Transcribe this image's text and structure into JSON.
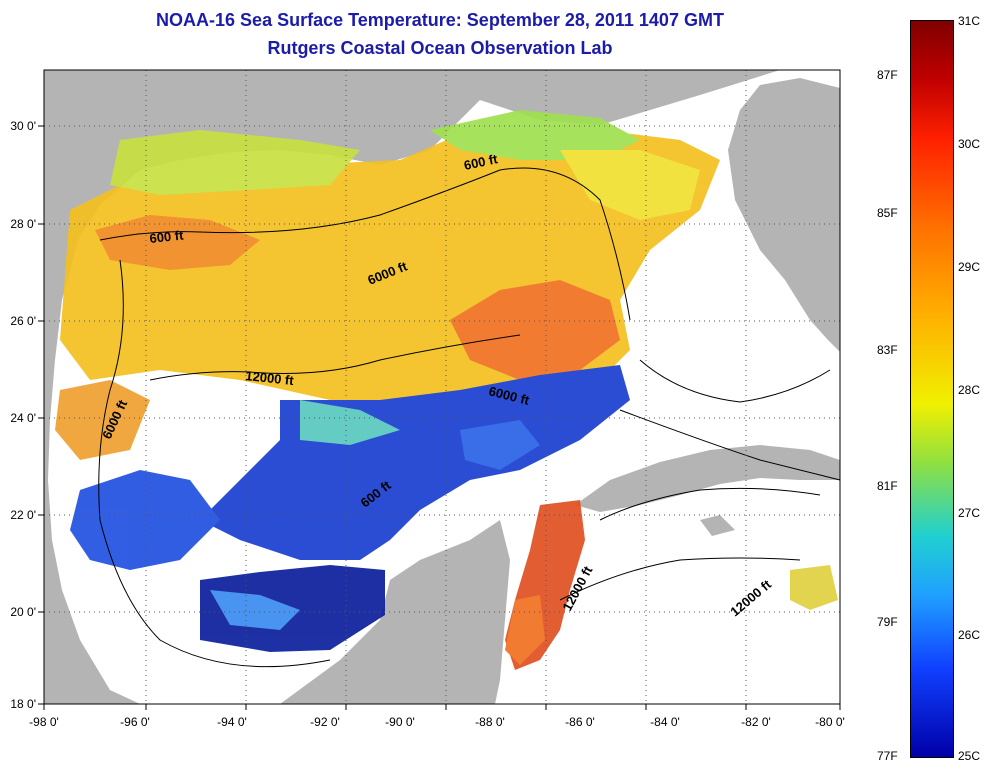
{
  "title": {
    "line1": "NOAA-16 Sea Surface Temperature:  September 28, 2011 1407 GMT",
    "line2": "Rutgers Coastal Ocean Observation Lab"
  },
  "map": {
    "lat_ticks": [
      "30 0'",
      "28 0'",
      "26 0'",
      "24 0'",
      "22 0'",
      "20 0'",
      "18 0'"
    ],
    "lon_ticks": [
      "-98 0'",
      "-96 0'",
      "-94 0'",
      "-92 0'",
      "-90 0'",
      "-88 0'",
      "-86 0'",
      "-84 0'",
      "-82 0'",
      "-80 0'"
    ],
    "contour_labels": [
      "600 ft",
      "600 ft",
      "6000 ft",
      "12000 ft",
      "6000 ft",
      "6000 ft",
      "600 ft",
      "12000 ft",
      "12000 ft"
    ],
    "land_color": "#b4b4b4",
    "nodata_color": "#ffffff"
  },
  "colorbar": {
    "celsius_labels": [
      "31C",
      "30C",
      "29C",
      "28C",
      "27C",
      "26C",
      "25C"
    ],
    "fahrenheit_labels": [
      "87F",
      "85F",
      "83F",
      "81F",
      "79F",
      "77F"
    ],
    "colors_top_to_bottom": [
      "#800000",
      "#ff2000",
      "#ff8000",
      "#f0f000",
      "#20d0d0",
      "#1040ff",
      "#0000a8"
    ]
  }
}
